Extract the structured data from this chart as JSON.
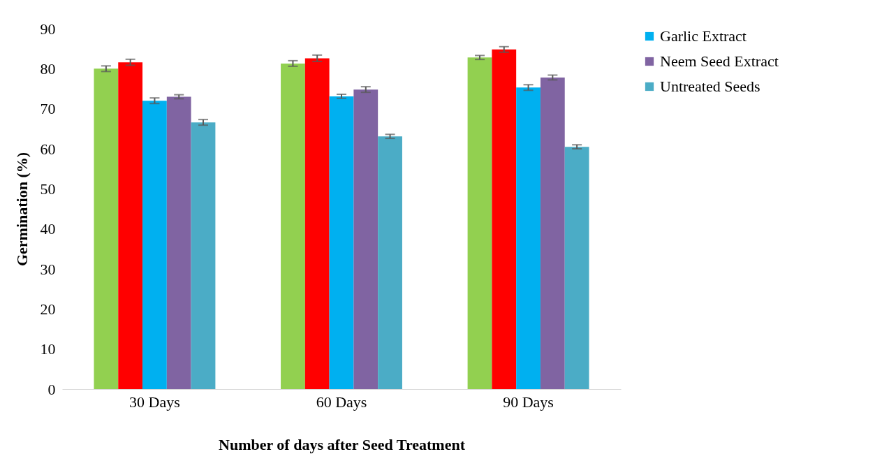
{
  "chart_data": {
    "type": "bar",
    "xlabel": "Number of days after Seed Treatment",
    "ylabel": "Germination (%)",
    "categories": [
      "30 Days",
      "60 Days",
      "90 Days"
    ],
    "series": [
      {
        "color": "#92d050",
        "values": [
          80,
          81.3,
          82.8
        ],
        "errors": [
          0.7,
          0.7,
          0.5
        ]
      },
      {
        "color": "#ff0000",
        "values": [
          81.6,
          82.6,
          84.8
        ],
        "errors": [
          0.75,
          0.8,
          0.7
        ]
      },
      {
        "name": "Garlic Extract",
        "color": "#00b0f0",
        "values": [
          72,
          73.1,
          75.3
        ],
        "errors": [
          0.7,
          0.5,
          0.7
        ]
      },
      {
        "name": "Neem Seed Extract",
        "color": "#8064a2",
        "values": [
          73,
          74.8,
          77.8
        ],
        "errors": [
          0.5,
          0.7,
          0.6
        ]
      },
      {
        "name": "Untreated Seeds",
        "color": "#4bacc6",
        "values": [
          66.6,
          63.1,
          60.5
        ],
        "errors": [
          0.7,
          0.5,
          0.5
        ]
      }
    ],
    "ylim": [
      0,
      90
    ],
    "yticks": [
      0,
      10,
      20,
      30,
      40,
      50,
      60,
      70,
      80,
      90
    ],
    "grid": false,
    "legend": "right"
  }
}
